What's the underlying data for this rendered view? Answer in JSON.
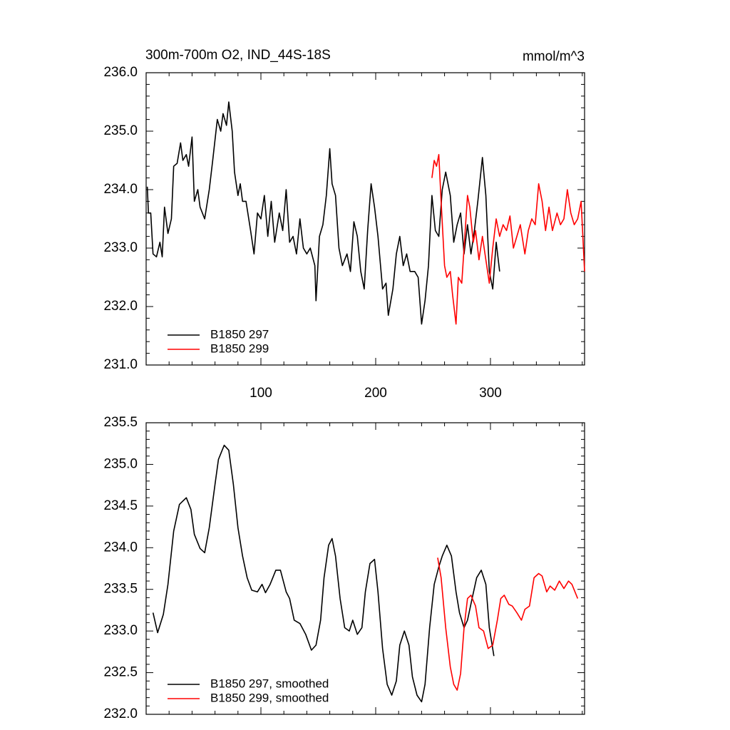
{
  "chart_data": [
    {
      "type": "line",
      "title": "300m-700m O2, IND_44S-18S",
      "units": "mmol/m^3",
      "xlim": [
        0,
        382
      ],
      "xticks": [
        100,
        200,
        300
      ],
      "xtick_labels": true,
      "ylim": [
        231,
        236
      ],
      "yticks": [
        {
          "value": 231,
          "label": "231.0"
        },
        {
          "value": 232,
          "label": "232.0"
        },
        {
          "value": 233,
          "label": "233.0"
        },
        {
          "value": 234,
          "label": "234.0"
        },
        {
          "value": 235,
          "label": "235.0"
        },
        {
          "value": 236,
          "label": "236.0"
        }
      ],
      "legend": "lower left",
      "series": [
        {
          "name": "B1850 297",
          "color": "#000000",
          "x": [
            1,
            2,
            4,
            6,
            9,
            12,
            14,
            16,
            19,
            22,
            24,
            27,
            30,
            32,
            35,
            37,
            40,
            42,
            45,
            47,
            51,
            55,
            58,
            62,
            65,
            67,
            70,
            72,
            75,
            77,
            80,
            82,
            84,
            87,
            91,
            94,
            97,
            100,
            103,
            106,
            109,
            112,
            116,
            119,
            122,
            125,
            128,
            131,
            134,
            137,
            140,
            143,
            147,
            148,
            151,
            154,
            157,
            160,
            162,
            165,
            168,
            171,
            175,
            178,
            181,
            184,
            187,
            190,
            193,
            196,
            199,
            202,
            206,
            209,
            211,
            215,
            218,
            221,
            224,
            227,
            230,
            234,
            237,
            240,
            243,
            246,
            249,
            252,
            255,
            258,
            261,
            265,
            268,
            271,
            274,
            277,
            280,
            283,
            286,
            289,
            293,
            296,
            299,
            302,
            305,
            308
          ],
          "values": [
            234.05,
            233.6,
            233.6,
            232.9,
            232.85,
            233.1,
            232.85,
            233.7,
            233.25,
            233.5,
            234.4,
            234.45,
            234.8,
            234.5,
            234.6,
            234.4,
            234.9,
            233.8,
            234.0,
            233.7,
            233.5,
            234.0,
            234.5,
            235.2,
            235.0,
            235.3,
            235.1,
            235.5,
            235.0,
            234.3,
            233.9,
            234.1,
            233.8,
            233.8,
            233.3,
            232.9,
            233.6,
            233.5,
            233.9,
            233.2,
            233.8,
            233.1,
            233.6,
            233.3,
            234.0,
            233.1,
            233.2,
            232.9,
            233.5,
            233.0,
            232.9,
            233.0,
            232.7,
            232.1,
            233.2,
            233.4,
            233.9,
            234.7,
            234.1,
            233.9,
            233.0,
            232.7,
            232.9,
            232.6,
            233.45,
            233.2,
            232.6,
            232.3,
            233.3,
            234.1,
            233.7,
            233.2,
            232.3,
            232.4,
            231.85,
            232.3,
            232.9,
            233.2,
            232.7,
            232.9,
            232.6,
            232.6,
            232.5,
            231.7,
            232.1,
            232.7,
            233.9,
            233.3,
            233.2,
            234.0,
            234.3,
            233.9,
            233.1,
            233.4,
            233.6,
            232.9,
            233.4,
            232.9,
            233.3,
            233.8,
            234.55,
            233.9,
            232.6,
            232.3,
            233.1,
            232.6
          ]
        },
        {
          "name": "B1850 299",
          "color": "#ff0000",
          "x": [
            249,
            251,
            253,
            255,
            257,
            260,
            262,
            265,
            267,
            270,
            272,
            275,
            277,
            280,
            282,
            285,
            287,
            290,
            293,
            296,
            299,
            302,
            305,
            308,
            311,
            314,
            317,
            320,
            323,
            326,
            330,
            333,
            336,
            339,
            342,
            345,
            348,
            351,
            354,
            358,
            361,
            364,
            367,
            370,
            373,
            376,
            379,
            382
          ],
          "values": [
            234.2,
            234.5,
            234.4,
            234.6,
            233.8,
            232.7,
            232.5,
            232.6,
            232.2,
            231.7,
            232.5,
            232.4,
            233.0,
            233.9,
            233.7,
            233.1,
            233.3,
            232.8,
            233.2,
            232.8,
            232.4,
            233.0,
            233.5,
            233.2,
            233.4,
            233.3,
            233.55,
            233.0,
            233.2,
            233.4,
            232.9,
            233.3,
            233.5,
            233.4,
            234.1,
            233.8,
            233.3,
            233.7,
            233.3,
            233.6,
            233.4,
            233.5,
            234.0,
            233.6,
            233.4,
            233.5,
            233.8,
            232.6
          ]
        }
      ]
    },
    {
      "type": "line",
      "xlim": [
        0,
        382
      ],
      "xticks": [
        100,
        200,
        300
      ],
      "xtick_labels": false,
      "ylim": [
        232,
        235.5
      ],
      "yticks": [
        {
          "value": 232,
          "label": "232.0"
        },
        {
          "value": 232.5,
          "label": "232.5"
        },
        {
          "value": 233,
          "label": "233.0"
        },
        {
          "value": 233.5,
          "label": "233.5"
        },
        {
          "value": 234,
          "label": "234.0"
        },
        {
          "value": 234.5,
          "label": "234.5"
        },
        {
          "value": 235,
          "label": "235.0"
        },
        {
          "value": 235.5,
          "label": "235.5"
        }
      ],
      "legend": "lower left",
      "series": [
        {
          "name": "B1850 297, smoothed",
          "color": "#000000",
          "x": [
            6,
            10,
            15,
            19,
            24,
            29,
            35,
            39,
            42,
            47,
            51,
            55,
            60,
            63,
            68,
            72,
            76,
            80,
            84,
            88,
            92,
            97,
            101,
            104,
            108,
            113,
            117,
            122,
            125,
            129,
            134,
            139,
            144,
            148,
            152,
            155,
            159,
            162,
            165,
            169,
            173,
            177,
            180,
            184,
            188,
            191,
            195,
            199,
            202,
            206,
            210,
            214,
            218,
            221,
            225,
            229,
            232,
            236,
            240,
            243,
            247,
            251,
            255,
            258,
            262,
            266,
            270,
            273,
            277,
            280,
            284,
            288,
            292,
            296,
            299,
            303
          ],
          "values": [
            233.22,
            232.98,
            233.2,
            233.56,
            234.2,
            234.52,
            234.6,
            234.46,
            234.16,
            233.99,
            233.94,
            234.24,
            234.76,
            235.06,
            235.23,
            235.17,
            234.76,
            234.24,
            233.9,
            233.64,
            233.49,
            233.47,
            233.56,
            233.46,
            233.56,
            233.73,
            233.73,
            233.47,
            233.39,
            233.13,
            233.09,
            232.96,
            232.77,
            232.83,
            233.13,
            233.64,
            234.03,
            234.11,
            233.9,
            233.39,
            233.04,
            233.0,
            233.13,
            232.96,
            233.04,
            233.47,
            233.81,
            233.86,
            233.47,
            232.79,
            232.36,
            232.23,
            232.4,
            232.83,
            233.0,
            232.83,
            232.45,
            232.23,
            232.15,
            232.36,
            233.04,
            233.56,
            233.77,
            233.9,
            234.03,
            233.9,
            233.47,
            233.22,
            233.04,
            233.13,
            233.39,
            233.64,
            233.73,
            233.56,
            233.04,
            232.7
          ]
        },
        {
          "name": "B1850 299, smoothed",
          "color": "#ff0000",
          "x": [
            254,
            257,
            261,
            265,
            268,
            271,
            274,
            277,
            280,
            283,
            287,
            290,
            294,
            298,
            302,
            306,
            309,
            312,
            316,
            319,
            323,
            327,
            330,
            334,
            338,
            342,
            345,
            349,
            352,
            356,
            360,
            364,
            368,
            371,
            376
          ],
          "values": [
            233.88,
            233.64,
            233.04,
            232.57,
            232.36,
            232.29,
            232.49,
            233.04,
            233.39,
            233.43,
            233.3,
            233.04,
            233.0,
            232.79,
            232.83,
            233.13,
            233.39,
            233.43,
            233.32,
            233.3,
            233.22,
            233.13,
            233.26,
            233.3,
            233.64,
            233.69,
            233.66,
            233.47,
            233.54,
            233.49,
            233.6,
            233.51,
            233.6,
            233.56,
            233.39
          ]
        }
      ]
    }
  ]
}
